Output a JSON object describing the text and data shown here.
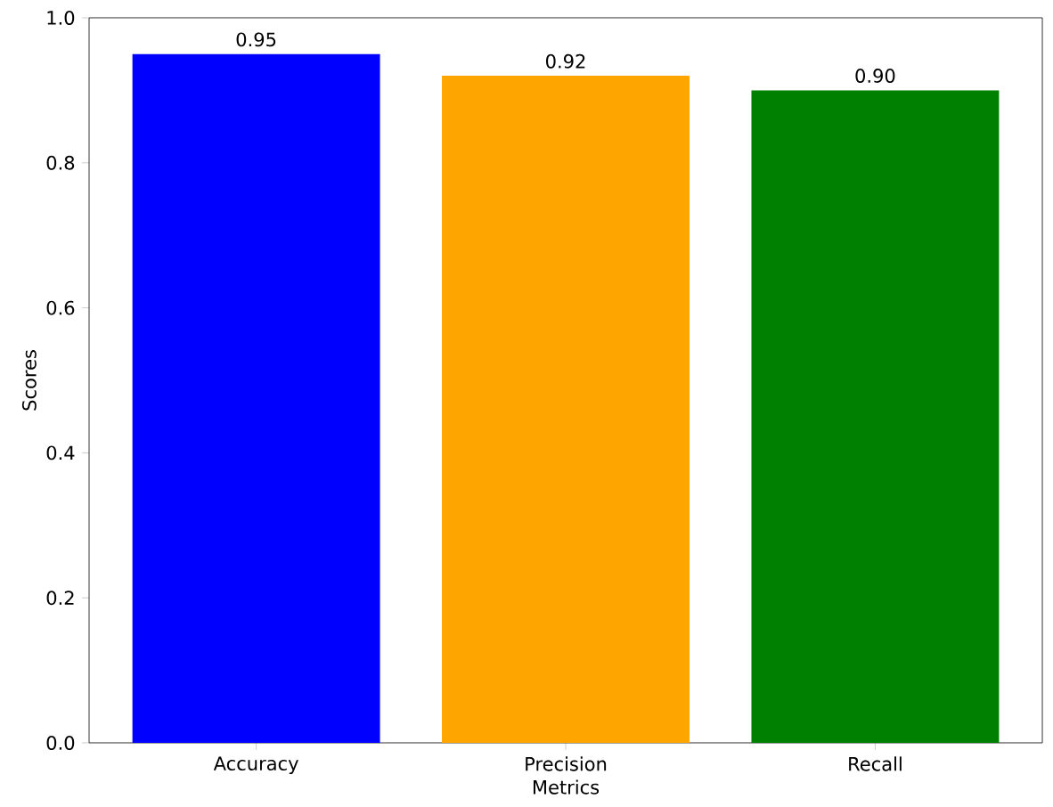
{
  "chart_data": {
    "type": "bar",
    "xlabel": "Metrics",
    "ylabel": "Scores",
    "categories": [
      "Accuracy",
      "Precision",
      "Recall"
    ],
    "values": [
      0.95,
      0.92,
      0.9
    ],
    "colors": [
      "#0000ff",
      "#ffa500",
      "#008000"
    ],
    "value_labels": [
      "0.95",
      "0.92",
      "0.90"
    ],
    "ylim": [
      0,
      1
    ],
    "yticks": [
      {
        "value": 0,
        "label": "0.0"
      },
      {
        "value": 0.2,
        "label": "0.2"
      },
      {
        "value": 0.4,
        "label": "0.4"
      },
      {
        "value": 0.6,
        "label": "0.6"
      },
      {
        "value": 0.8,
        "label": "0.8"
      },
      {
        "value": 1.0,
        "label": "1.0"
      }
    ]
  }
}
